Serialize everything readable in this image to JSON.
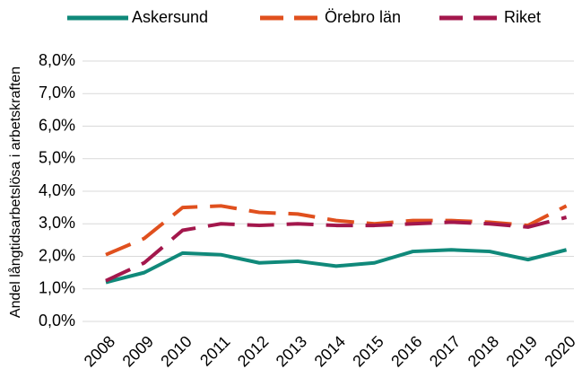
{
  "chart_data": {
    "type": "line",
    "y_label": "Andel långtidsarbetslösa i arbetskraften",
    "categories": [
      "2008",
      "2009",
      "2010",
      "2011",
      "2012",
      "2013",
      "2014",
      "2015",
      "2016",
      "2017",
      "2018",
      "2019",
      "2020"
    ],
    "series": [
      {
        "name": "Askersund",
        "color": "#10897a",
        "dash": "solid",
        "values": [
          1.2,
          1.5,
          2.1,
          2.05,
          1.8,
          1.85,
          1.7,
          1.8,
          2.15,
          2.2,
          2.15,
          1.9,
          2.2
        ]
      },
      {
        "name": "Örebro län",
        "color": "#e0501e",
        "dash": "dashed",
        "values": [
          2.05,
          2.55,
          3.5,
          3.55,
          3.35,
          3.3,
          3.1,
          3.0,
          3.1,
          3.1,
          3.05,
          2.95,
          3.55
        ]
      },
      {
        "name": "Riket",
        "color": "#a3174c",
        "dash": "dashed",
        "values": [
          1.25,
          1.8,
          2.8,
          3.0,
          2.95,
          3.0,
          2.95,
          2.95,
          3.0,
          3.05,
          3.0,
          2.9,
          3.2
        ]
      }
    ],
    "ylim": [
      0,
      8
    ],
    "yticks": [
      {
        "value": 0,
        "label": "0,0%"
      },
      {
        "value": 1,
        "label": "1,0%"
      },
      {
        "value": 2,
        "label": "2,0%"
      },
      {
        "value": 3,
        "label": "3,0%"
      },
      {
        "value": 4,
        "label": "4,0%"
      },
      {
        "value": 5,
        "label": "5,0%"
      },
      {
        "value": 6,
        "label": "6,0%"
      },
      {
        "value": 7,
        "label": "7,0%"
      },
      {
        "value": 8,
        "label": "8,0%"
      }
    ],
    "grid": true,
    "legend": "top"
  }
}
